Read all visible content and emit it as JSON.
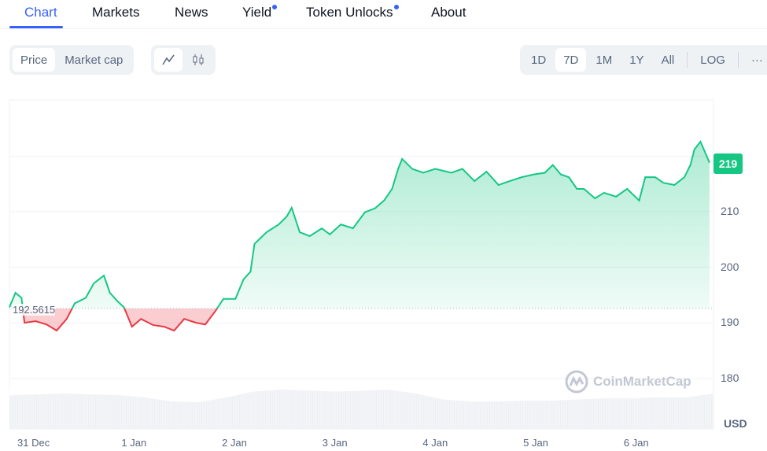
{
  "tabs": [
    {
      "label": "Chart",
      "active": true
    },
    {
      "label": "Markets"
    },
    {
      "label": "News"
    },
    {
      "label": "Yield",
      "dot": true
    },
    {
      "label": "Token Unlocks",
      "dot": true
    },
    {
      "label": "About"
    }
  ],
  "toggles": {
    "price": "Price",
    "market_cap": "Market cap"
  },
  "ranges": [
    "1D",
    "7D",
    "1M",
    "1Y",
    "All"
  ],
  "log_label": "LOG",
  "more_label": "···",
  "watermark": "CoinMarketCap",
  "colors": {
    "accent": "#3861fb",
    "up": "#16c784",
    "down": "#ea3943"
  },
  "chart_data": {
    "type": "line",
    "title": "",
    "baseline": 192.5615,
    "baseline_label": "192.5615",
    "current_value_label": "219",
    "unit_label": "USD",
    "x_ticks": [
      {
        "t": 0,
        "label": "31 Dec"
      },
      {
        "t": 1,
        "label": "1 Jan"
      },
      {
        "t": 2,
        "label": "2 Jan"
      },
      {
        "t": 3,
        "label": "3 Jan"
      },
      {
        "t": 4,
        "label": "4 Jan"
      },
      {
        "t": 5,
        "label": "5 Jan"
      },
      {
        "t": 6,
        "label": "6 Jan"
      }
    ],
    "y_ticks": [
      180,
      190,
      200,
      210
    ],
    "xlim": [
      -0.24,
      6.77
    ],
    "ylim": [
      170.9,
      230.1
    ],
    "grid": true,
    "t": [
      -0.24,
      -0.18,
      -0.12,
      -0.09,
      0.02,
      0.13,
      0.23,
      0.33,
      0.41,
      0.52,
      0.6,
      0.7,
      0.76,
      0.84,
      0.9,
      0.98,
      1.07,
      1.19,
      1.3,
      1.4,
      1.5,
      1.62,
      1.71,
      1.81,
      1.89,
      2.01,
      2.09,
      2.16,
      2.2,
      2.32,
      2.44,
      2.52,
      2.57,
      2.65,
      2.75,
      2.87,
      2.95,
      3.06,
      3.18,
      3.3,
      3.4,
      3.49,
      3.57,
      3.63,
      3.67,
      3.77,
      3.88,
      4.0,
      4.16,
      4.27,
      4.39,
      4.51,
      4.63,
      4.74,
      4.86,
      4.98,
      5.09,
      5.17,
      5.25,
      5.33,
      5.41,
      5.48,
      5.59,
      5.68,
      5.8,
      5.91,
      6.03,
      6.09,
      6.19,
      6.27,
      6.38,
      6.48,
      6.54,
      6.58,
      6.64,
      6.7,
      6.73
    ],
    "price": [
      192.8,
      195.4,
      194.5,
      190,
      190.3,
      189.7,
      188.6,
      190.7,
      193.5,
      194.5,
      197.1,
      198.5,
      195.4,
      193.8,
      192.8,
      189.3,
      190.7,
      189.6,
      189.3,
      188.6,
      190.7,
      190,
      189.7,
      192.1,
      194.3,
      194.3,
      197.8,
      199.2,
      204.2,
      206.3,
      207.7,
      209.1,
      210.7,
      206.3,
      205.6,
      207,
      205.9,
      207.7,
      207,
      209.9,
      210.6,
      212,
      214.1,
      217.7,
      219.5,
      217.7,
      217,
      217.7,
      217,
      217.7,
      215.5,
      217.2,
      214.8,
      215.5,
      216.2,
      216.7,
      217,
      218.4,
      216.7,
      216.2,
      214.1,
      214.1,
      212.4,
      213.4,
      212.7,
      214.1,
      212,
      216.2,
      216.2,
      215.2,
      214.8,
      216.2,
      218.4,
      221.2,
      222.6,
      220.1,
      218.8
    ],
    "volume_relative": [
      0.85,
      0.88,
      0.9,
      0.88,
      0.86,
      0.8,
      0.7,
      0.68,
      0.8,
      0.95,
      1.0,
      0.98,
      0.95,
      0.97,
      1.0,
      0.9,
      0.75,
      0.7,
      0.7,
      0.72,
      0.72,
      0.75,
      0.78,
      0.78,
      0.8,
      0.8,
      0.9
    ]
  }
}
